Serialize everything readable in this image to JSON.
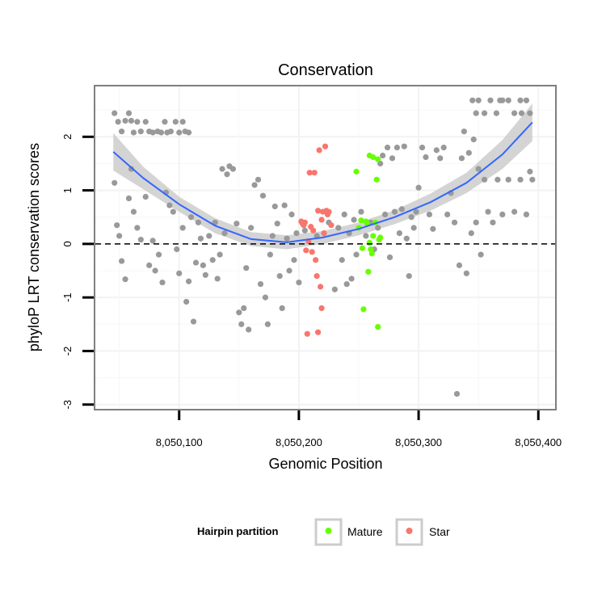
{
  "chart_data": {
    "type": "scatter",
    "title": "Conservation",
    "xlabel": "Genomic Position",
    "ylabel": "phyloP LRT conservation scores",
    "xlim": [
      8050030,
      8050414
    ],
    "ylim": [
      -3.08,
      2.94
    ],
    "x_ticks": [
      8050100,
      8050200,
      8050300,
      8050400
    ],
    "x_tick_labels": [
      "8,050,100",
      "8,050,200",
      "8,050,300",
      "8,050,400"
    ],
    "y_ticks": [
      -3,
      -2,
      -1,
      0,
      1,
      2
    ],
    "y_tick_labels": [
      "-3",
      "-2",
      "-1",
      "0",
      "1",
      "2"
    ],
    "reference_line": {
      "y": 0,
      "style": "dashed"
    },
    "grid": true,
    "legend": {
      "title": "Hairpin partition",
      "placement": "bottom",
      "entries": [
        {
          "label": "Mature",
          "color": "#66ff00"
        },
        {
          "label": "Star",
          "color": "#f8766d"
        }
      ]
    },
    "colors": {
      "background_points": "#999999",
      "mature": "#66ff00",
      "star": "#f8766d",
      "smooth_line": "#3366ff",
      "ribbon": "#cccccc"
    },
    "smooth": {
      "type": "quadratic",
      "x": [
        8050045,
        8050070,
        8050100,
        8050130,
        8050160,
        8050190,
        8050220,
        8050250,
        8050280,
        8050310,
        8050340,
        8050370,
        8050395
      ],
      "y": [
        1.72,
        1.23,
        0.74,
        0.34,
        0.09,
        0.03,
        0.12,
        0.28,
        0.5,
        0.78,
        1.14,
        1.67,
        2.27
      ],
      "lower": [
        1.37,
        1.02,
        0.6,
        0.2,
        -0.04,
        -0.1,
        0.0,
        0.16,
        0.37,
        0.62,
        0.95,
        1.4,
        1.92
      ],
      "upper": [
        2.07,
        1.44,
        0.88,
        0.48,
        0.22,
        0.16,
        0.24,
        0.4,
        0.63,
        0.94,
        1.33,
        1.94,
        2.62
      ]
    },
    "series": [
      {
        "name": "",
        "points": [
          [
            8050046,
            2.44
          ],
          [
            8050049,
            2.28
          ],
          [
            8050052,
            2.1
          ],
          [
            8050055,
            2.3
          ],
          [
            8050058,
            2.44
          ],
          [
            8050060,
            2.3
          ],
          [
            8050062,
            2.08
          ],
          [
            8050065,
            2.28
          ],
          [
            8050068,
            2.1
          ],
          [
            8050072,
            2.28
          ],
          [
            8050075,
            2.1
          ],
          [
            8050078,
            2.08
          ],
          [
            8050082,
            2.1
          ],
          [
            8050085,
            2.08
          ],
          [
            8050088,
            2.28
          ],
          [
            8050090,
            2.08
          ],
          [
            8050093,
            2.1
          ],
          [
            8050097,
            2.28
          ],
          [
            8050100,
            2.08
          ],
          [
            8050103,
            2.28
          ],
          [
            8050105,
            2.1
          ],
          [
            8050108,
            2.08
          ],
          [
            8050345,
            2.68
          ],
          [
            8050350,
            2.68
          ],
          [
            8050355,
            2.44
          ],
          [
            8050360,
            2.68
          ],
          [
            8050365,
            2.44
          ],
          [
            8050370,
            2.68
          ],
          [
            8050375,
            2.68
          ],
          [
            8050380,
            2.44
          ],
          [
            8050385,
            2.68
          ],
          [
            8050390,
            2.68
          ],
          [
            8050393,
            2.44
          ],
          [
            8050348,
            2.44
          ],
          [
            8050368,
            2.68
          ],
          [
            8050386,
            2.44
          ],
          [
            8050046,
            1.14
          ],
          [
            8050048,
            0.35
          ],
          [
            8050050,
            0.15
          ],
          [
            8050052,
            -0.32
          ],
          [
            8050055,
            -0.66
          ],
          [
            8050058,
            0.85
          ],
          [
            8050060,
            1.4
          ],
          [
            8050062,
            0.6
          ],
          [
            8050065,
            0.3
          ],
          [
            8050068,
            0.08
          ],
          [
            8050072,
            0.88
          ],
          [
            8050075,
            -0.4
          ],
          [
            8050078,
            0.06
          ],
          [
            8050080,
            -0.5
          ],
          [
            8050083,
            -0.2
          ],
          [
            8050086,
            -0.72
          ],
          [
            8050089,
            0.96
          ],
          [
            8050092,
            0.72
          ],
          [
            8050095,
            0.6
          ],
          [
            8050098,
            -0.1
          ],
          [
            8050100,
            -0.55
          ],
          [
            8050103,
            0.3
          ],
          [
            8050106,
            -1.08
          ],
          [
            8050108,
            -0.7
          ],
          [
            8050110,
            0.5
          ],
          [
            8050112,
            -1.45
          ],
          [
            8050114,
            -0.35
          ],
          [
            8050116,
            0.4
          ],
          [
            8050118,
            0.1
          ],
          [
            8050120,
            -0.4
          ],
          [
            8050122,
            -0.58
          ],
          [
            8050125,
            0.15
          ],
          [
            8050128,
            -0.3
          ],
          [
            8050130,
            0.4
          ],
          [
            8050132,
            -0.65
          ],
          [
            8050134,
            -0.2
          ],
          [
            8050136,
            1.4
          ],
          [
            8050138,
            0.2
          ],
          [
            8050140,
            1.3
          ],
          [
            8050142,
            1.45
          ],
          [
            8050145,
            1.4
          ],
          [
            8050148,
            0.38
          ],
          [
            8050150,
            -1.28
          ],
          [
            8050152,
            -1.5
          ],
          [
            8050154,
            -1.2
          ],
          [
            8050156,
            -0.45
          ],
          [
            8050158,
            -1.6
          ],
          [
            8050160,
            0.3
          ],
          [
            8050163,
            1.1
          ],
          [
            8050166,
            1.2
          ],
          [
            8050168,
            -0.75
          ],
          [
            8050170,
            0.9
          ],
          [
            8050172,
            -1.0
          ],
          [
            8050174,
            -1.5
          ],
          [
            8050176,
            -0.2
          ],
          [
            8050178,
            0.15
          ],
          [
            8050180,
            0.7
          ],
          [
            8050182,
            0.38
          ],
          [
            8050184,
            -0.6
          ],
          [
            8050186,
            -1.2
          ],
          [
            8050188,
            0.72
          ],
          [
            8050190,
            0.1
          ],
          [
            8050192,
            -0.5
          ],
          [
            8050194,
            0.55
          ],
          [
            8050196,
            -0.3
          ],
          [
            8050198,
            0.2
          ],
          [
            8050200,
            -0.72
          ],
          [
            8050205,
            0.25
          ],
          [
            8050215,
            0.15
          ],
          [
            8050225,
            0.4
          ],
          [
            8050230,
            -0.85
          ],
          [
            8050233,
            0.3
          ],
          [
            8050236,
            -0.3
          ],
          [
            8050238,
            0.55
          ],
          [
            8050240,
            -0.75
          ],
          [
            8050242,
            0.2
          ],
          [
            8050244,
            -0.65
          ],
          [
            8050246,
            0.45
          ],
          [
            8050248,
            -0.2
          ],
          [
            8050252,
            0.6
          ],
          [
            8050256,
            0.15
          ],
          [
            8050260,
            0.4
          ],
          [
            8050263,
            -0.1
          ],
          [
            8050266,
            0.3
          ],
          [
            8050268,
            1.5
          ],
          [
            8050270,
            1.65
          ],
          [
            8050272,
            0.55
          ],
          [
            8050274,
            1.8
          ],
          [
            8050276,
            -0.25
          ],
          [
            8050278,
            1.6
          ],
          [
            8050280,
            0.6
          ],
          [
            8050282,
            1.8
          ],
          [
            8050284,
            0.2
          ],
          [
            8050286,
            0.65
          ],
          [
            8050288,
            1.82
          ],
          [
            8050290,
            0.1
          ],
          [
            8050292,
            -0.6
          ],
          [
            8050294,
            0.5
          ],
          [
            8050296,
            0.3
          ],
          [
            8050298,
            0.6
          ],
          [
            8050300,
            1.05
          ],
          [
            8050303,
            1.8
          ],
          [
            8050306,
            1.62
          ],
          [
            8050309,
            0.55
          ],
          [
            8050312,
            0.28
          ],
          [
            8050315,
            1.75
          ],
          [
            8050318,
            1.6
          ],
          [
            8050321,
            1.8
          ],
          [
            8050324,
            0.55
          ],
          [
            8050327,
            0.95
          ],
          [
            8050330,
            0.4
          ],
          [
            8050332,
            -2.8
          ],
          [
            8050334,
            -0.4
          ],
          [
            8050336,
            1.6
          ],
          [
            8050338,
            2.1
          ],
          [
            8050340,
            -0.55
          ],
          [
            8050342,
            1.7
          ],
          [
            8050344,
            0.2
          ],
          [
            8050346,
            1.95
          ],
          [
            8050348,
            0.4
          ],
          [
            8050350,
            1.4
          ],
          [
            8050352,
            -0.2
          ],
          [
            8050355,
            1.2
          ],
          [
            8050358,
            0.6
          ],
          [
            8050362,
            0.4
          ],
          [
            8050366,
            1.2
          ],
          [
            8050370,
            0.55
          ],
          [
            8050375,
            1.2
          ],
          [
            8050380,
            0.6
          ],
          [
            8050385,
            1.2
          ],
          [
            8050390,
            0.55
          ],
          [
            8050393,
            1.35
          ],
          [
            8050395,
            1.2
          ]
        ]
      },
      {
        "name": "Mature",
        "points": [
          [
            8050248,
            1.35
          ],
          [
            8050250,
            0.3
          ],
          [
            8050252,
            0.44
          ],
          [
            8050253,
            -0.08
          ],
          [
            8050254,
            -1.22
          ],
          [
            8050256,
            0.42
          ],
          [
            8050257,
            0.38
          ],
          [
            8050258,
            -0.52
          ],
          [
            8050259,
            0.02
          ],
          [
            8050259,
            1.65
          ],
          [
            8050260,
            -0.1
          ],
          [
            8050261,
            -0.18
          ],
          [
            8050262,
            1.62
          ],
          [
            8050262,
            0.15
          ],
          [
            8050264,
            0.4
          ],
          [
            8050265,
            1.2
          ],
          [
            8050266,
            1.58
          ],
          [
            8050266,
            -1.55
          ],
          [
            8050267,
            0.08
          ],
          [
            8050268,
            0.12
          ]
        ]
      },
      {
        "name": "Star",
        "points": [
          [
            8050205,
            0.4
          ],
          [
            8050206,
            -0.12
          ],
          [
            8050207,
            -1.68
          ],
          [
            8050208,
            0.05
          ],
          [
            8050209,
            1.33
          ],
          [
            8050210,
            0.32
          ],
          [
            8050211,
            -0.15
          ],
          [
            8050212,
            0.25
          ],
          [
            8050213,
            1.33
          ],
          [
            8050214,
            -0.3
          ],
          [
            8050215,
            -0.6
          ],
          [
            8050216,
            -1.65
          ],
          [
            8050216,
            0.62
          ],
          [
            8050217,
            1.75
          ],
          [
            8050218,
            -0.8
          ],
          [
            8050219,
            0.45
          ],
          [
            8050219,
            -1.2
          ],
          [
            8050220,
            0.6
          ],
          [
            8050221,
            0.2
          ],
          [
            8050222,
            1.82
          ],
          [
            8050223,
            0.62
          ],
          [
            8050224,
            0.55
          ],
          [
            8050225,
            0.6
          ],
          [
            8050227,
            0.35
          ],
          [
            8050202,
            0.42
          ],
          [
            8050203,
            0.38
          ],
          [
            8050204,
            0.35
          ]
        ]
      }
    ]
  }
}
